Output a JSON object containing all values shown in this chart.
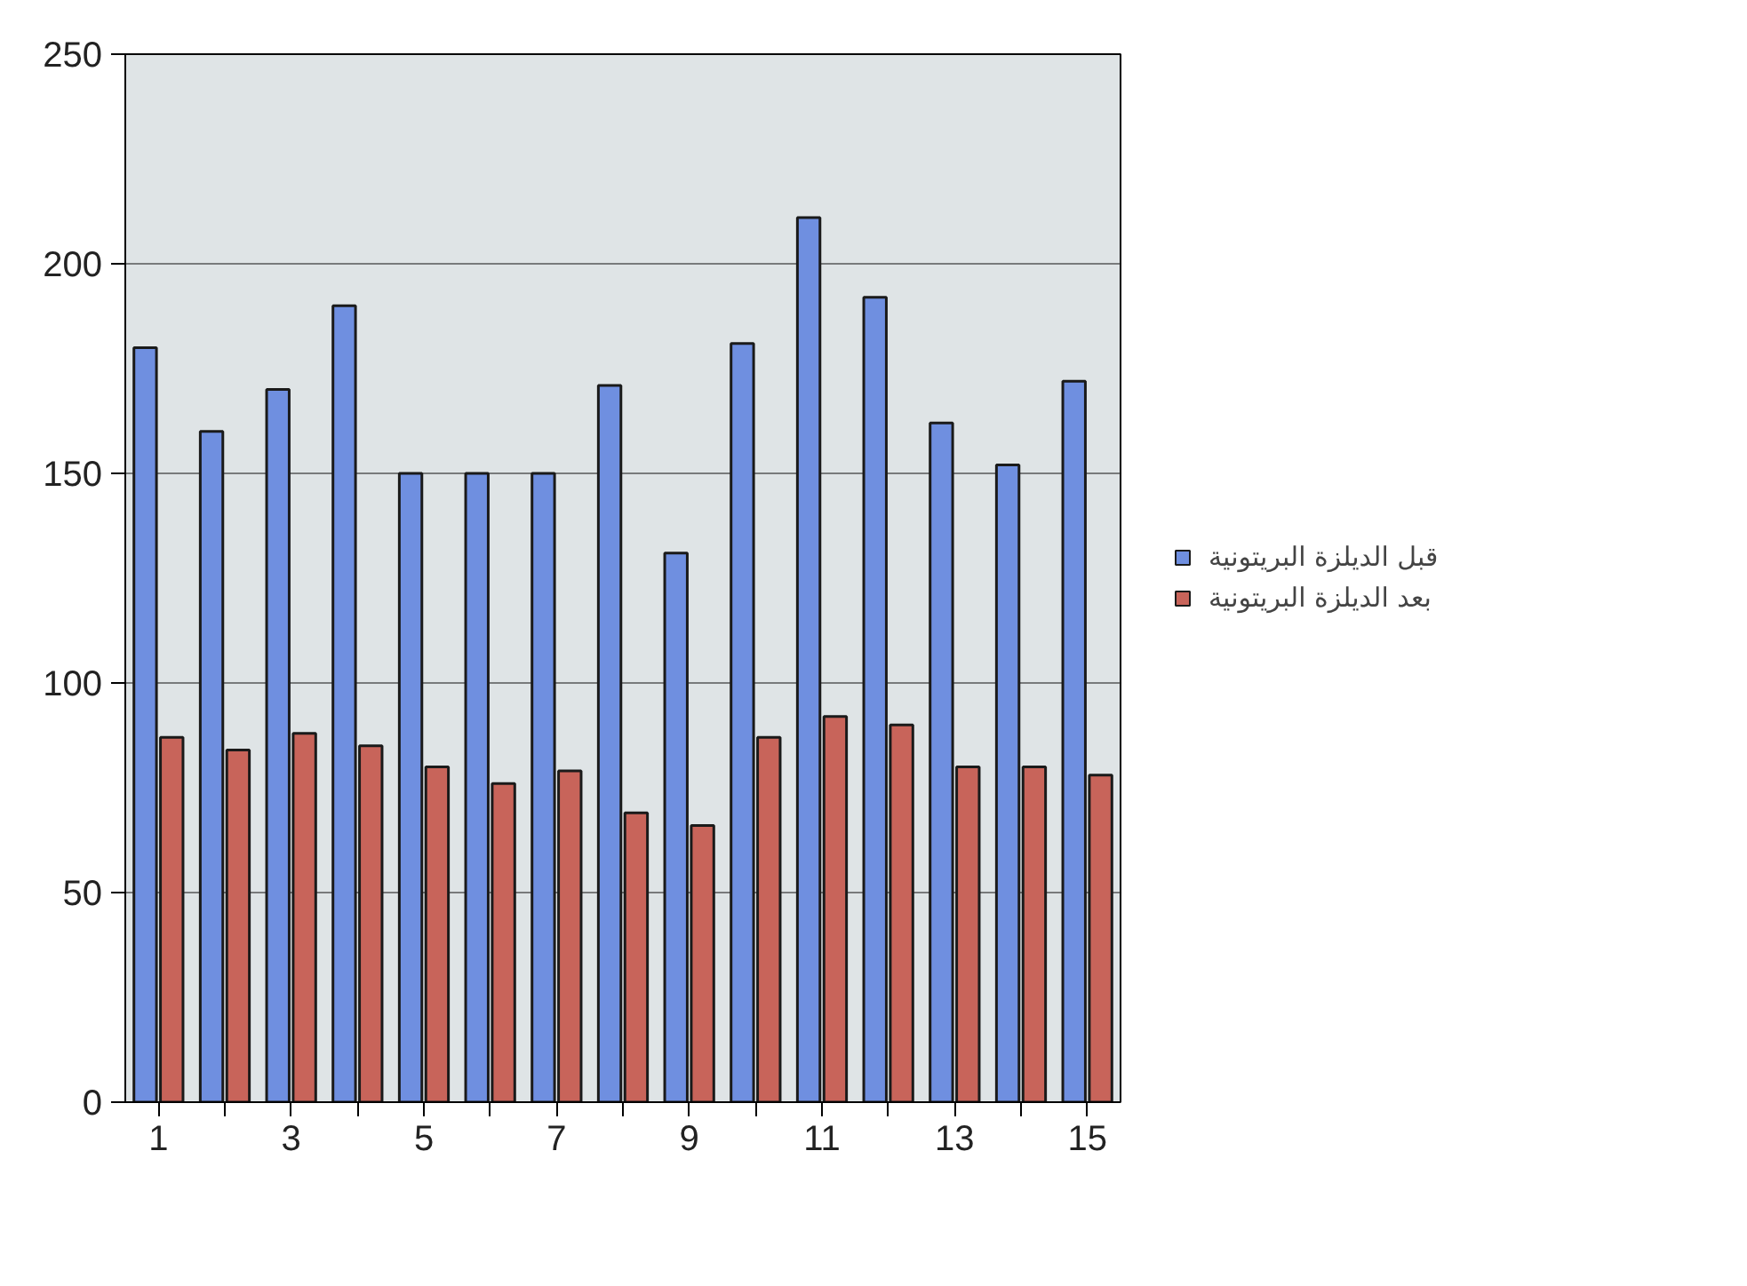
{
  "chart_data": {
    "type": "bar",
    "x": [
      1,
      2,
      3,
      4,
      5,
      6,
      7,
      8,
      9,
      10,
      11,
      12,
      13,
      14,
      15
    ],
    "xlim": [
      0.5,
      15.5
    ],
    "xticks": [
      1,
      3,
      5,
      7,
      9,
      11,
      13,
      15
    ],
    "series": [
      {
        "name": "قبل الديلزة البريتونية",
        "color": "#6f8fe0",
        "values": [
          180,
          160,
          170,
          190,
          150,
          150,
          150,
          171,
          131,
          181,
          211,
          192,
          162,
          152,
          172
        ]
      },
      {
        "name": "بعد الديلزة البريتونية",
        "color": "#c8645a",
        "values": [
          87,
          84,
          88,
          85,
          80,
          76,
          79,
          69,
          66,
          87,
          92,
          90,
          80,
          80,
          78
        ]
      }
    ],
    "ylim": [
      0,
      250
    ],
    "yticks": [
      0,
      50,
      100,
      150,
      200,
      250
    ],
    "grid": "y",
    "legend": "right"
  }
}
